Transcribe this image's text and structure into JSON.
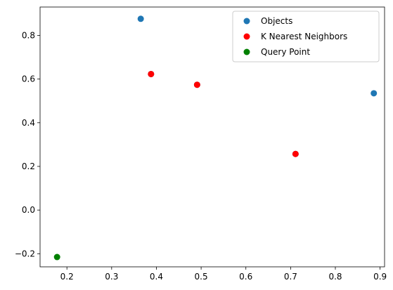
{
  "chart_data": {
    "type": "scatter",
    "title": "",
    "xlabel": "",
    "ylabel": "",
    "xlim": [
      0.14,
      0.91
    ],
    "ylim": [
      -0.26,
      0.93
    ],
    "x_ticks": [
      0.2,
      0.3,
      0.4,
      0.5,
      0.6,
      0.7,
      0.8,
      0.9
    ],
    "y_ticks": [
      -0.2,
      0.0,
      0.2,
      0.4,
      0.6,
      0.8
    ],
    "x_tick_labels": [
      "0.2",
      "0.3",
      "0.4",
      "0.5",
      "0.6",
      "0.7",
      "0.8",
      "0.9"
    ],
    "y_tick_labels": [
      "−0.2",
      "0.0",
      "0.2",
      "0.4",
      "0.6",
      "0.8"
    ],
    "grid": false,
    "legend_position": "top-right",
    "series": [
      {
        "name": "Objects",
        "color": "#1f77b4",
        "points": [
          {
            "x": 0.365,
            "y": 0.876
          },
          {
            "x": 0.388,
            "y": 0.623
          },
          {
            "x": 0.491,
            "y": 0.574
          },
          {
            "x": 0.711,
            "y": 0.257
          },
          {
            "x": 0.886,
            "y": 0.535
          }
        ]
      },
      {
        "name": "K Nearest Neighbors",
        "color": "#ff0000",
        "points": [
          {
            "x": 0.388,
            "y": 0.623
          },
          {
            "x": 0.491,
            "y": 0.574
          },
          {
            "x": 0.711,
            "y": 0.257
          }
        ]
      },
      {
        "name": "Query Point",
        "color": "#008000",
        "points": [
          {
            "x": 0.178,
            "y": -0.215
          }
        ]
      }
    ]
  }
}
